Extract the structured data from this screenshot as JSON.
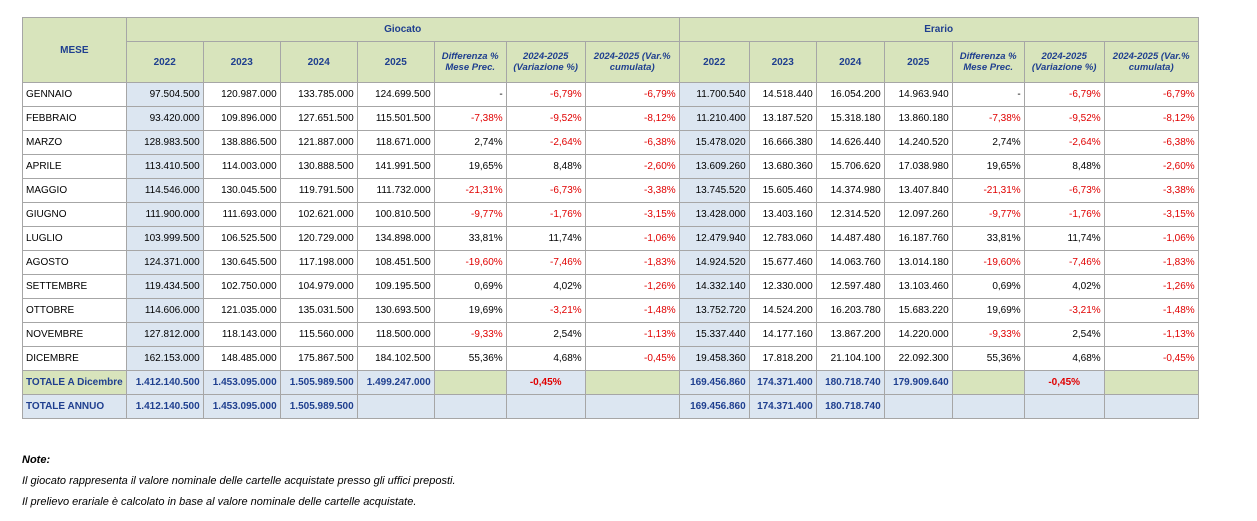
{
  "table": {
    "corner": "MESE",
    "groups": [
      "Giocato",
      "Erario"
    ],
    "subheaders": [
      "2022",
      "2023",
      "2024",
      "2025",
      "Differenza % Mese Prec.",
      "2024-2025 (Variazione %)",
      "2024-2025 (Var.% cumulata)"
    ],
    "rows": [
      [
        "GENNAIO",
        "97.504.500",
        "120.987.000",
        "133.785.000",
        "124.699.500",
        "-",
        "-6,79%",
        "-6,79%",
        "11.700.540",
        "14.518.440",
        "16.054.200",
        "14.963.940",
        "-",
        "-6,79%",
        "-6,79%"
      ],
      [
        "FEBBRAIO",
        "93.420.000",
        "109.896.000",
        "127.651.500",
        "115.501.500",
        "-7,38%",
        "-9,52%",
        "-8,12%",
        "11.210.400",
        "13.187.520",
        "15.318.180",
        "13.860.180",
        "-7,38%",
        "-9,52%",
        "-8,12%"
      ],
      [
        "MARZO",
        "128.983.500",
        "138.886.500",
        "121.887.000",
        "118.671.000",
        "2,74%",
        "-2,64%",
        "-6,38%",
        "15.478.020",
        "16.666.380",
        "14.626.440",
        "14.240.520",
        "2,74%",
        "-2,64%",
        "-6,38%"
      ],
      [
        "APRILE",
        "113.410.500",
        "114.003.000",
        "130.888.500",
        "141.991.500",
        "19,65%",
        "8,48%",
        "-2,60%",
        "13.609.260",
        "13.680.360",
        "15.706.620",
        "17.038.980",
        "19,65%",
        "8,48%",
        "-2,60%"
      ],
      [
        "MAGGIO",
        "114.546.000",
        "130.045.500",
        "119.791.500",
        "111.732.000",
        "-21,31%",
        "-6,73%",
        "-3,38%",
        "13.745.520",
        "15.605.460",
        "14.374.980",
        "13.407.840",
        "-21,31%",
        "-6,73%",
        "-3,38%"
      ],
      [
        "GIUGNO",
        "111.900.000",
        "111.693.000",
        "102.621.000",
        "100.810.500",
        "-9,77%",
        "-1,76%",
        "-3,15%",
        "13.428.000",
        "13.403.160",
        "12.314.520",
        "12.097.260",
        "-9,77%",
        "-1,76%",
        "-3,15%"
      ],
      [
        "LUGLIO",
        "103.999.500",
        "106.525.500",
        "120.729.000",
        "134.898.000",
        "33,81%",
        "11,74%",
        "-1,06%",
        "12.479.940",
        "12.783.060",
        "14.487.480",
        "16.187.760",
        "33,81%",
        "11,74%",
        "-1,06%"
      ],
      [
        "AGOSTO",
        "124.371.000",
        "130.645.500",
        "117.198.000",
        "108.451.500",
        "-19,60%",
        "-7,46%",
        "-1,83%",
        "14.924.520",
        "15.677.460",
        "14.063.760",
        "13.014.180",
        "-19,60%",
        "-7,46%",
        "-1,83%"
      ],
      [
        "SETTEMBRE",
        "119.434.500",
        "102.750.000",
        "104.979.000",
        "109.195.500",
        "0,69%",
        "4,02%",
        "-1,26%",
        "14.332.140",
        "12.330.000",
        "12.597.480",
        "13.103.460",
        "0,69%",
        "4,02%",
        "-1,26%"
      ],
      [
        "OTTOBRE",
        "114.606.000",
        "121.035.000",
        "135.031.500",
        "130.693.500",
        "19,69%",
        "-3,21%",
        "-1,48%",
        "13.752.720",
        "14.524.200",
        "16.203.780",
        "15.683.220",
        "19,69%",
        "-3,21%",
        "-1,48%"
      ],
      [
        "NOVEMBRE",
        "127.812.000",
        "118.143.000",
        "115.560.000",
        "118.500.000",
        "-9,33%",
        "2,54%",
        "-1,13%",
        "15.337.440",
        "14.177.160",
        "13.867.200",
        "14.220.000",
        "-9,33%",
        "2,54%",
        "-1,13%"
      ],
      [
        "DICEMBRE",
        "162.153.000",
        "148.485.000",
        "175.867.500",
        "184.102.500",
        "55,36%",
        "4,68%",
        "-0,45%",
        "19.458.360",
        "17.818.200",
        "21.104.100",
        "22.092.300",
        "55,36%",
        "4,68%",
        "-0,45%"
      ]
    ],
    "totals": [
      [
        "TOTALE A Dicembre",
        "1.412.140.500",
        "1.453.095.000",
        "1.505.989.500",
        "1.499.247.000",
        null,
        "-0,45%",
        null,
        "169.456.860",
        "174.371.400",
        "180.718.740",
        "179.909.640",
        null,
        "-0,45%",
        null
      ],
      [
        "TOTALE ANNUO",
        "1.412.140.500",
        "1.453.095.000",
        "1.505.989.500",
        null,
        null,
        null,
        null,
        "169.456.860",
        "174.371.400",
        "180.718.740",
        null,
        null,
        null,
        null
      ]
    ]
  },
  "notes": {
    "title": "Note:",
    "lines": [
      "Il giocato rappresenta il valore nominale delle cartelle acquistate presso gli uffici preposti.",
      "Il prelievo erariale è calcolato in base al valore nominale delle cartelle acquistate."
    ]
  }
}
